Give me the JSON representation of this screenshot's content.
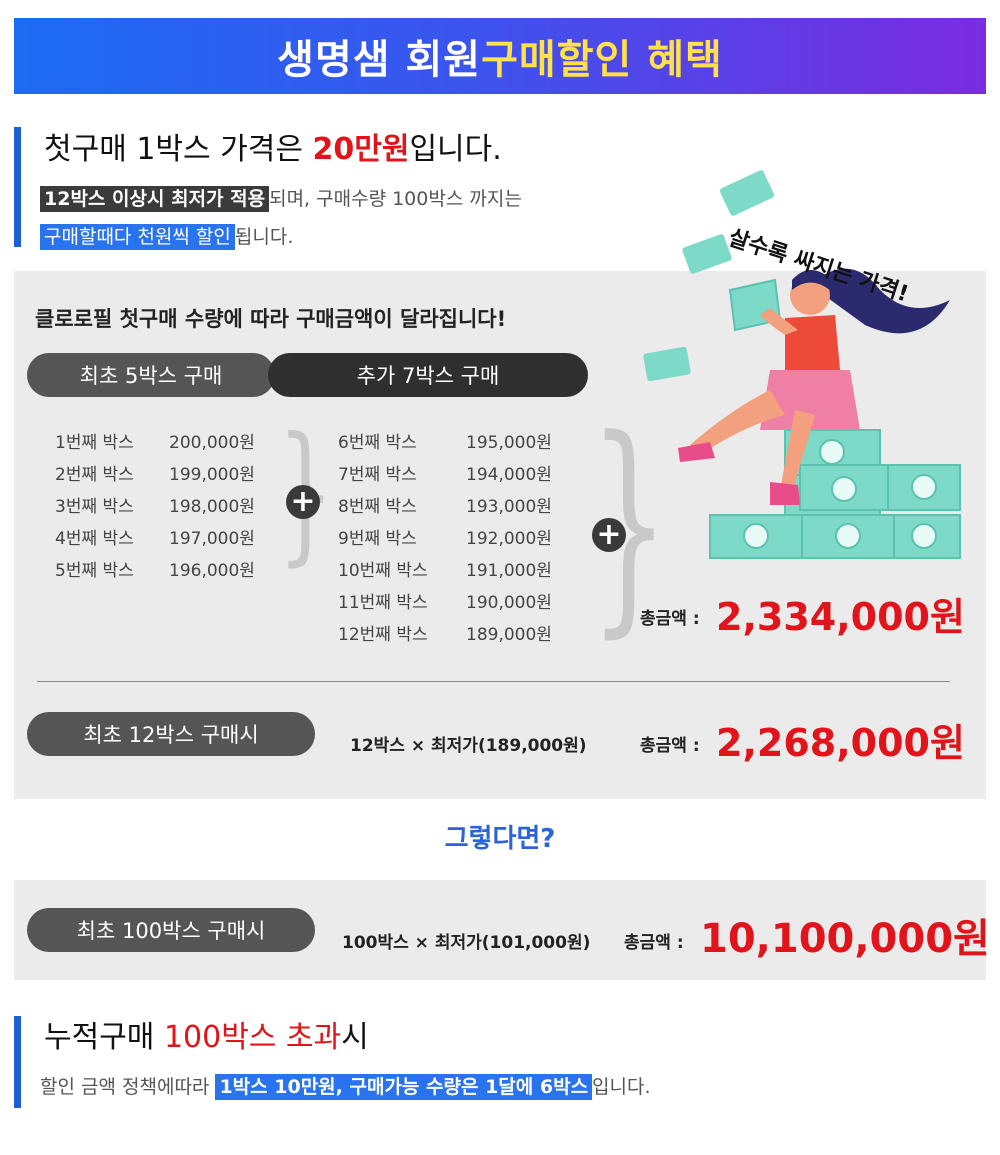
{
  "banner": {
    "part1": "생명샘 회원",
    "part2": "구매할인 혜택"
  },
  "section1": {
    "title_pre": "첫구매 1박스 가격은 ",
    "title_price": "20만원",
    "title_post": "입니다.",
    "line1_hl": "12박스 이상시 최저가 적용",
    "line1_rest": "되며, 구매수량 100박스 까지는",
    "line2_hl": "구매할때다 천원씩 할인",
    "line2_rest": "됩니다."
  },
  "panel": {
    "heading": "클로로필 첫구매 수량에 따라 구매금액이 달라집니다!",
    "pill_first": "최초 5박스 구매",
    "pill_add": "추가 7박스 구매",
    "first_rows": [
      {
        "label": "1번째 박스",
        "price": "200,000원"
      },
      {
        "label": "2번째 박스",
        "price": "199,000원"
      },
      {
        "label": "3번째 박스",
        "price": "198,000원"
      },
      {
        "label": "4번째 박스",
        "price": "197,000원"
      },
      {
        "label": "5번째 박스",
        "price": "196,000원"
      }
    ],
    "add_rows": [
      {
        "label": "6번째 박스",
        "price": "195,000원"
      },
      {
        "label": "7번째 박스",
        "price": "194,000원"
      },
      {
        "label": "8번째 박스",
        "price": "193,000원"
      },
      {
        "label": "9번째 박스",
        "price": "192,000원"
      },
      {
        "label": "10번째 박스",
        "price": "191,000원"
      },
      {
        "label": "11번째 박스",
        "price": "190,000원"
      },
      {
        "label": "12번째 박스",
        "price": "189,000원"
      }
    ],
    "total_label": "총금액 :",
    "total_value": "2,334,000원",
    "slogan": "살수록 싸지는 가격!",
    "pill_12": "최초 12박스 구매시",
    "formula_12": "12박스 × 최저가(189,000원)",
    "total_12_label": "총금액 :",
    "total_12_value": "2,268,000원"
  },
  "question": "그렇다면?",
  "panel100": {
    "pill": "최초 100박스 구매시",
    "formula": "100박스 × 최저가(101,000원)",
    "total_label": "총금액 :",
    "total_value": "10,100,000원"
  },
  "section2": {
    "title_pre": "누적구매 ",
    "title_hl": "100박스 초과",
    "title_post": "시",
    "line_pre": "할인 금액 정책에따라 ",
    "line_hl": "1박스 10만원, 구매가능 수량은 1달에 6박스",
    "line_post": "입니다."
  },
  "colors": {
    "accent_blue": "#2a73ef",
    "price_red": "#e1141b",
    "money_mint": "#7dd9c8",
    "dress_pink": "#f07fa6"
  }
}
